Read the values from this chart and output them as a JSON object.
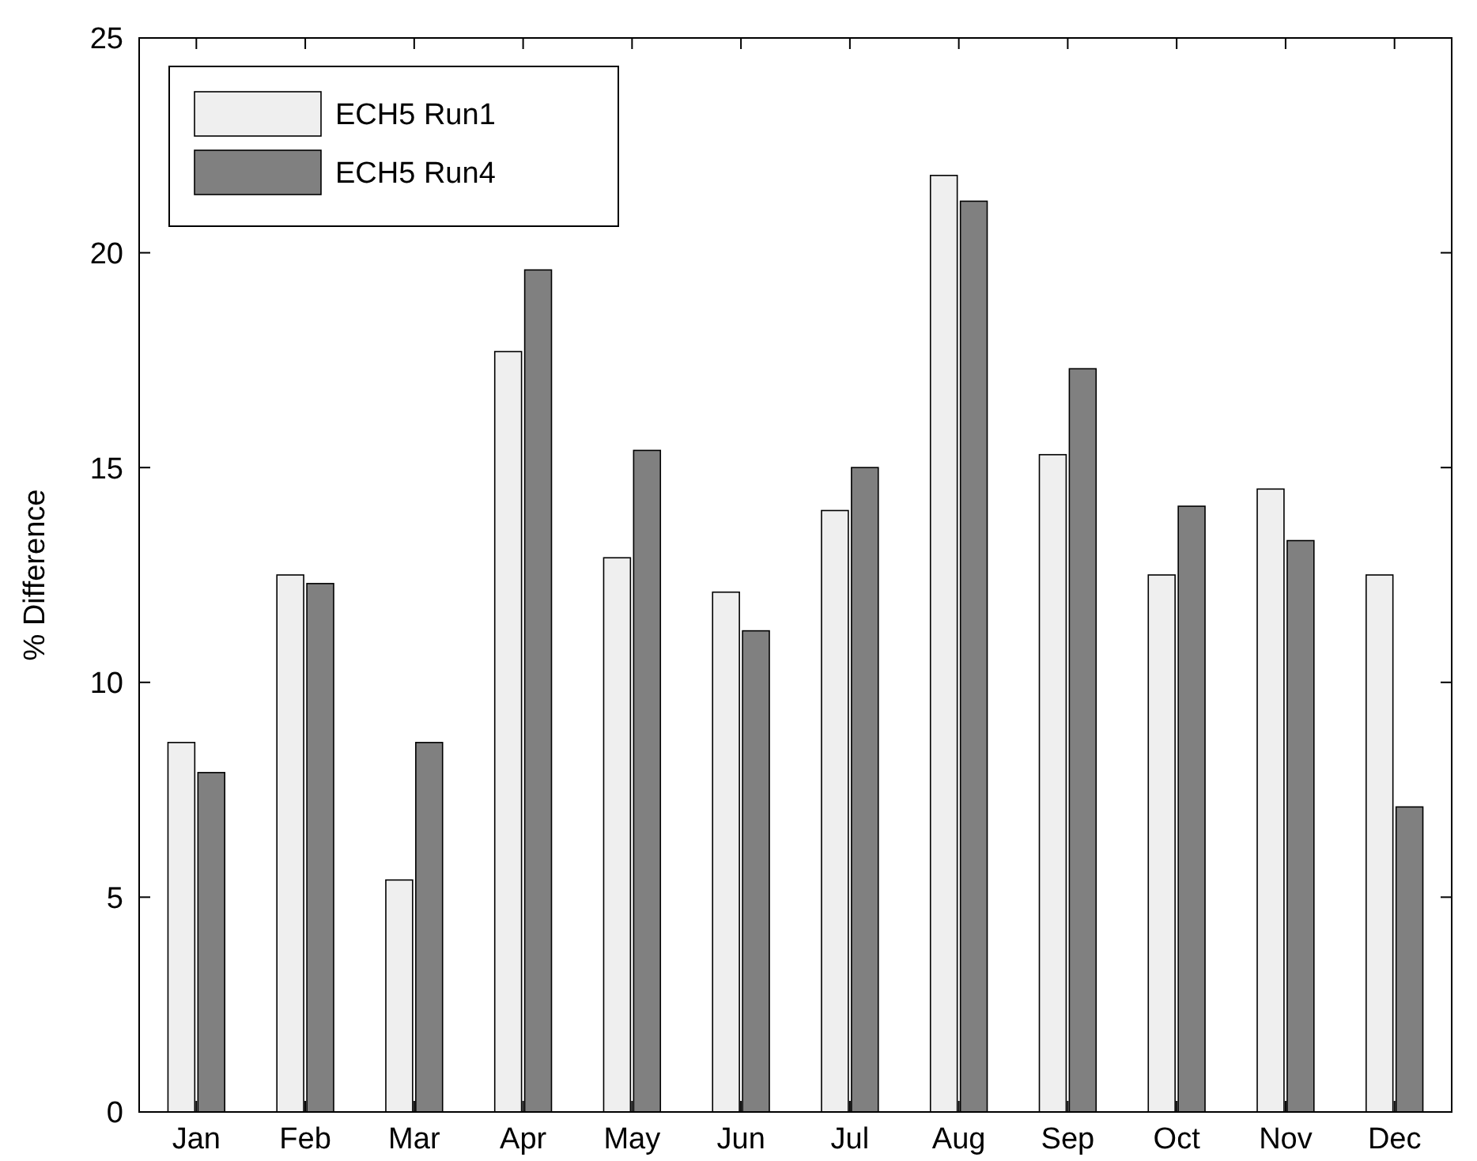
{
  "chart_data": {
    "type": "bar",
    "ylabel": "% Difference",
    "categories": [
      "Jan",
      "Feb",
      "Mar",
      "Apr",
      "May",
      "Jun",
      "Jul",
      "Aug",
      "Sep",
      "Oct",
      "Nov",
      "Dec"
    ],
    "series": [
      {
        "name": "ECH5 Run1",
        "color": "#efefef",
        "values": [
          8.6,
          12.5,
          5.4,
          17.7,
          12.9,
          12.1,
          14.0,
          21.8,
          15.3,
          12.5,
          14.5,
          12.5
        ]
      },
      {
        "name": "ECH5 Run4",
        "color": "#808080",
        "values": [
          7.9,
          12.3,
          8.6,
          19.6,
          15.4,
          11.2,
          15.0,
          21.2,
          17.3,
          14.1,
          13.3,
          7.1
        ]
      }
    ],
    "ylim": [
      0,
      25
    ],
    "yticks": [
      0,
      5,
      10,
      15,
      20,
      25
    ],
    "grid": false,
    "legend": "top left"
  }
}
